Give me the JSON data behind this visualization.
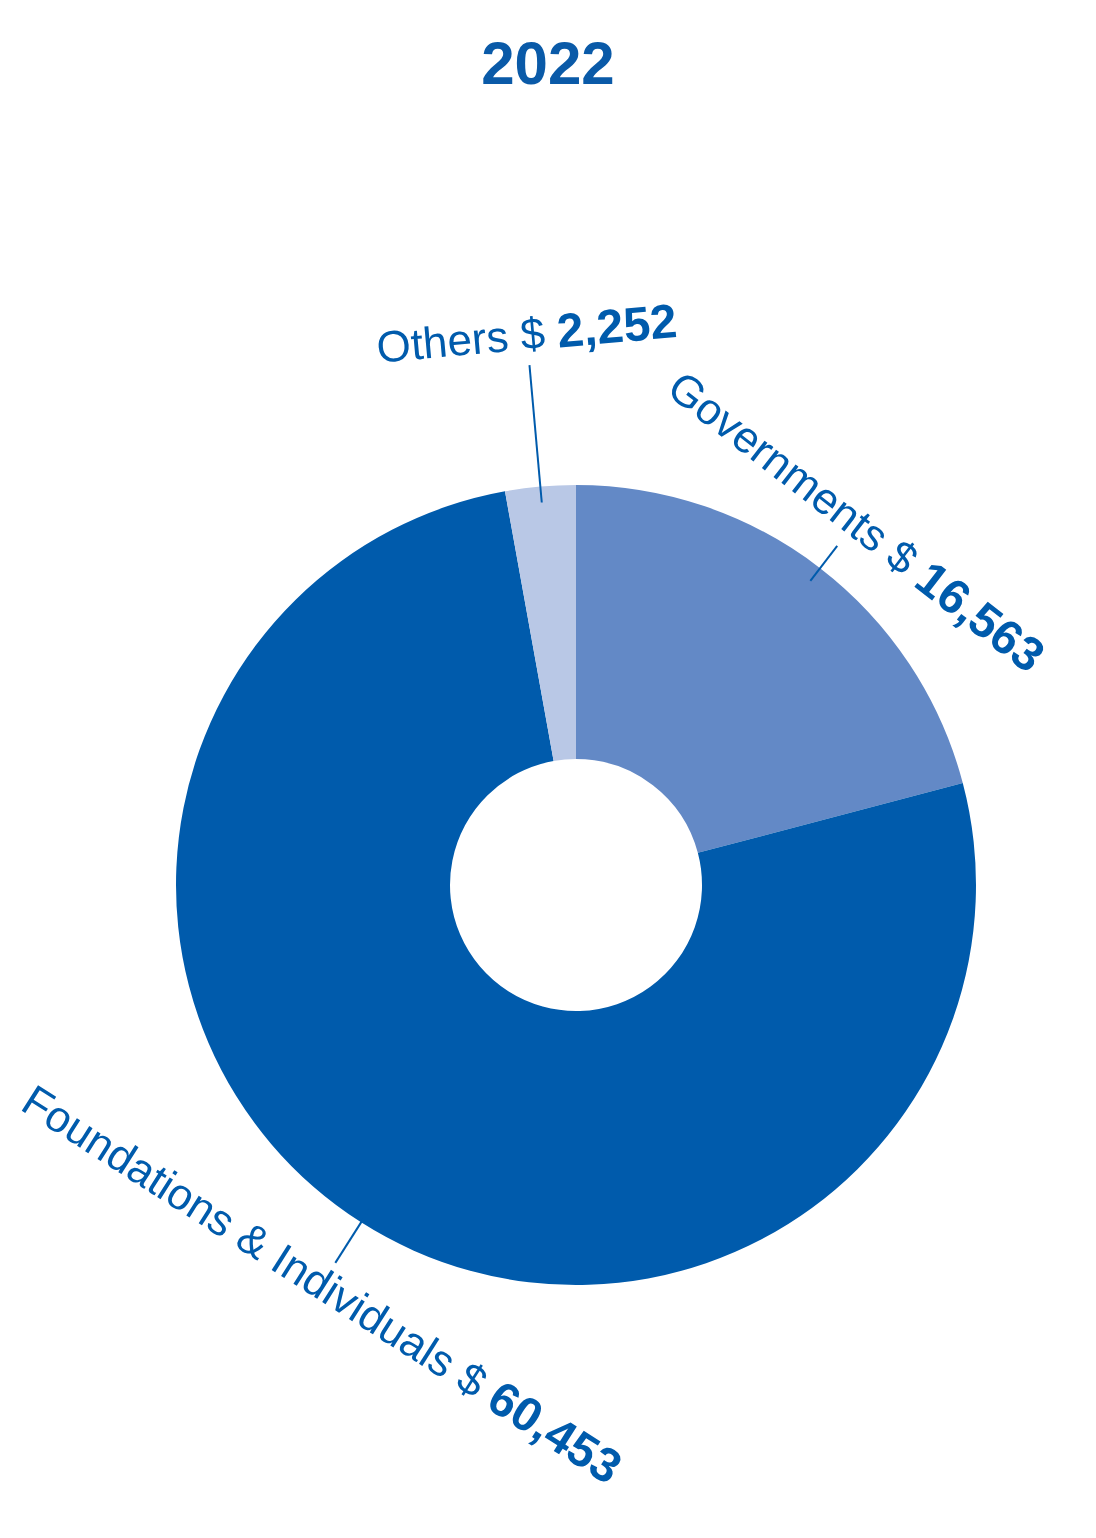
{
  "chart_data": {
    "type": "donut",
    "title": "2022",
    "categories": [
      "Governments",
      "Foundations & Individuals",
      "Others"
    ],
    "values": [
      16563,
      60453,
      2252
    ],
    "value_labels": [
      "$ 16,563",
      "$ 60,453",
      "$ 2,252"
    ],
    "colors": [
      "#6389c6",
      "#005bac",
      "#b9c8e6"
    ],
    "legend": false
  }
}
